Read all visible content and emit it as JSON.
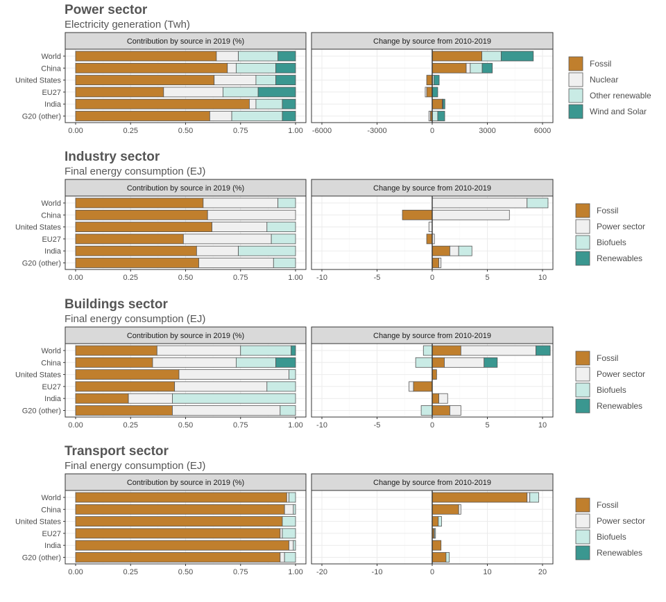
{
  "chart_data": [
    {
      "type": "bar",
      "orientation": "horizontal",
      "stacked": true,
      "title": "Power sector",
      "subtitle": "Electricity generation (Twh)",
      "categories": [
        "World",
        "China",
        "United States",
        "EU27",
        "India",
        "G20 (other)"
      ],
      "legend_position": "right",
      "colors": {
        "Fossil": "#c07f2d",
        "Nuclear": "#f0f0f0",
        "Other renewable": "#c9ebe5",
        "Wind and Solar": "#3a9790"
      },
      "panels": [
        {
          "strip": "Contribution by source in 2019 (%)",
          "xlim": [
            0,
            1
          ],
          "ticks": [
            0,
            0.25,
            0.5,
            0.75,
            1
          ],
          "tick_labels": [
            "0.00",
            "0.25",
            "0.50",
            "0.75",
            "1.00"
          ],
          "series": [
            {
              "name": "Fossil",
              "values": [
                0.64,
                0.69,
                0.63,
                0.4,
                0.79,
                0.61
              ]
            },
            {
              "name": "Nuclear",
              "values": [
                0.1,
                0.04,
                0.19,
                0.27,
                0.03,
                0.1
              ]
            },
            {
              "name": "Other renewable",
              "values": [
                0.18,
                0.18,
                0.09,
                0.16,
                0.12,
                0.23
              ]
            },
            {
              "name": "Wind and Solar",
              "values": [
                0.08,
                0.09,
                0.09,
                0.17,
                0.06,
                0.06
              ]
            }
          ]
        },
        {
          "strip": "Change by source from 2010-2019",
          "xlim": [
            -6000,
            6000
          ],
          "ticks": [
            -6000,
            -3000,
            0,
            3000,
            6000
          ],
          "tick_labels": [
            "-6000",
            "-3000",
            "0",
            "3000",
            "6000"
          ],
          "series": [
            {
              "name": "Fossil",
              "values": [
                2700,
                1850,
                -300,
                -300,
                550,
                -100
              ]
            },
            {
              "name": "Nuclear",
              "values": [
                0,
                220,
                20,
                -80,
                30,
                -80
              ]
            },
            {
              "name": "Other renewable",
              "values": [
                1050,
                650,
                80,
                0,
                0,
                300
              ]
            },
            {
              "name": "Wind and Solar",
              "values": [
                1750,
                550,
                280,
                300,
                110,
                380
              ]
            }
          ]
        }
      ]
    },
    {
      "type": "bar",
      "orientation": "horizontal",
      "stacked": true,
      "title": "Industry sector",
      "subtitle": "Final energy consumption (EJ)",
      "categories": [
        "World",
        "China",
        "United States",
        "EU27",
        "India",
        "G20 (other)"
      ],
      "legend_position": "right",
      "colors": {
        "Fossil": "#c07f2d",
        "Power sector": "#f0f0f0",
        "Biofuels": "#c9ebe5",
        "Renewables": "#3a9790"
      },
      "panels": [
        {
          "strip": "Contribution by source in 2019 (%)",
          "xlim": [
            0,
            1
          ],
          "ticks": [
            0,
            0.25,
            0.5,
            0.75,
            1
          ],
          "tick_labels": [
            "0.00",
            "0.25",
            "0.50",
            "0.75",
            "1.00"
          ],
          "series": [
            {
              "name": "Fossil",
              "values": [
                0.58,
                0.6,
                0.62,
                0.49,
                0.55,
                0.56
              ]
            },
            {
              "name": "Power sector",
              "values": [
                0.34,
                0.4,
                0.25,
                0.4,
                0.19,
                0.34
              ]
            },
            {
              "name": "Biofuels",
              "values": [
                0.08,
                0.0,
                0.13,
                0.11,
                0.26,
                0.1
              ]
            },
            {
              "name": "Renewables",
              "values": [
                0,
                0,
                0,
                0,
                0,
                0
              ]
            }
          ]
        },
        {
          "strip": "Change by source from 2010-2019",
          "xlim": [
            -10,
            10
          ],
          "ticks": [
            -10,
            -5,
            0,
            5,
            10
          ],
          "tick_labels": [
            "-10",
            "-5",
            "0",
            "5",
            "10"
          ],
          "series": [
            {
              "name": "Fossil",
              "values": [
                0,
                -2.7,
                0,
                -0.5,
                1.6,
                0.6
              ]
            },
            {
              "name": "Power sector",
              "values": [
                8.6,
                7.0,
                -0.3,
                0.2,
                0.8,
                0.2
              ]
            },
            {
              "name": "Biofuels",
              "values": [
                1.9,
                0,
                0,
                0,
                1.2,
                0
              ]
            },
            {
              "name": "Renewables",
              "values": [
                0,
                0,
                0,
                0,
                0,
                0
              ]
            }
          ]
        }
      ]
    },
    {
      "type": "bar",
      "orientation": "horizontal",
      "stacked": true,
      "title": "Buildings sector",
      "subtitle": "Final energy consumption (EJ)",
      "categories": [
        "World",
        "China",
        "United States",
        "EU27",
        "India",
        "G20 (other)"
      ],
      "legend_position": "right",
      "colors": {
        "Fossil": "#c07f2d",
        "Power sector": "#f0f0f0",
        "Biofuels": "#c9ebe5",
        "Renewables": "#3a9790"
      },
      "panels": [
        {
          "strip": "Contribution by source in 2019 (%)",
          "xlim": [
            0,
            1
          ],
          "ticks": [
            0,
            0.25,
            0.5,
            0.75,
            1
          ],
          "tick_labels": [
            "0.00",
            "0.25",
            "0.50",
            "0.75",
            "1.00"
          ],
          "series": [
            {
              "name": "Fossil",
              "values": [
                0.37,
                0.35,
                0.47,
                0.45,
                0.24,
                0.44
              ]
            },
            {
              "name": "Power sector",
              "values": [
                0.38,
                0.38,
                0.5,
                0.42,
                0.2,
                0.49
              ]
            },
            {
              "name": "Biofuels",
              "values": [
                0.23,
                0.18,
                0.03,
                0.13,
                0.56,
                0.07
              ]
            },
            {
              "name": "Renewables",
              "values": [
                0.02,
                0.09,
                0.0,
                0.0,
                0.0,
                0.0
              ]
            }
          ]
        },
        {
          "strip": "Change by source from 2010-2019",
          "xlim": [
            -10,
            10
          ],
          "ticks": [
            -10,
            -5,
            0,
            5,
            10
          ],
          "tick_labels": [
            "-10",
            "-5",
            "0",
            "5",
            "10"
          ],
          "series": [
            {
              "name": "Fossil",
              "values": [
                2.6,
                1.1,
                0.4,
                -1.7,
                0.6,
                1.6
              ]
            },
            {
              "name": "Power sector",
              "values": [
                6.8,
                3.6,
                0,
                -0.4,
                0.8,
                1.0
              ]
            },
            {
              "name": "Biofuels",
              "values": [
                -0.8,
                -1.5,
                0,
                0,
                0,
                -1.0
              ]
            },
            {
              "name": "Renewables",
              "values": [
                1.3,
                1.2,
                0,
                0,
                0,
                0
              ]
            }
          ]
        }
      ]
    },
    {
      "type": "bar",
      "orientation": "horizontal",
      "stacked": true,
      "title": "Transport sector",
      "subtitle": "Final energy consumption (EJ)",
      "categories": [
        "World",
        "China",
        "United States",
        "EU27",
        "India",
        "G20 (other)"
      ],
      "legend_position": "right",
      "colors": {
        "Fossil": "#c07f2d",
        "Power sector": "#f0f0f0",
        "Biofuels": "#c9ebe5",
        "Renewables": "#3a9790"
      },
      "panels": [
        {
          "strip": "Contribution by source in 2019 (%)",
          "xlim": [
            0,
            1
          ],
          "ticks": [
            0,
            0.25,
            0.5,
            0.75,
            1
          ],
          "tick_labels": [
            "0.00",
            "0.25",
            "0.50",
            "0.75",
            "1.00"
          ],
          "series": [
            {
              "name": "Fossil",
              "values": [
                0.96,
                0.95,
                0.94,
                0.93,
                0.97,
                0.93
              ]
            },
            {
              "name": "Power sector",
              "values": [
                0.01,
                0.04,
                0.0,
                0.01,
                0.02,
                0.02
              ]
            },
            {
              "name": "Biofuels",
              "values": [
                0.03,
                0.01,
                0.06,
                0.06,
                0.01,
                0.05
              ]
            },
            {
              "name": "Renewables",
              "values": [
                0,
                0,
                0,
                0,
                0,
                0
              ]
            }
          ]
        },
        {
          "strip": "Change by source from 2010-2019",
          "xlim": [
            -20,
            20
          ],
          "ticks": [
            -20,
            -10,
            0,
            10,
            20
          ],
          "tick_labels": [
            "-20",
            "-10",
            "0",
            "10",
            "20"
          ],
          "series": [
            {
              "name": "Fossil",
              "values": [
                17.2,
                4.8,
                1.1,
                0.3,
                1.6,
                2.5
              ]
            },
            {
              "name": "Power sector",
              "values": [
                0.5,
                0.4,
                0,
                0.1,
                0,
                0
              ]
            },
            {
              "name": "Biofuels",
              "values": [
                1.6,
                0,
                0.6,
                0.2,
                0,
                0.6
              ]
            },
            {
              "name": "Renewables",
              "values": [
                0,
                0,
                0,
                0,
                0,
                0
              ]
            }
          ]
        }
      ]
    }
  ]
}
